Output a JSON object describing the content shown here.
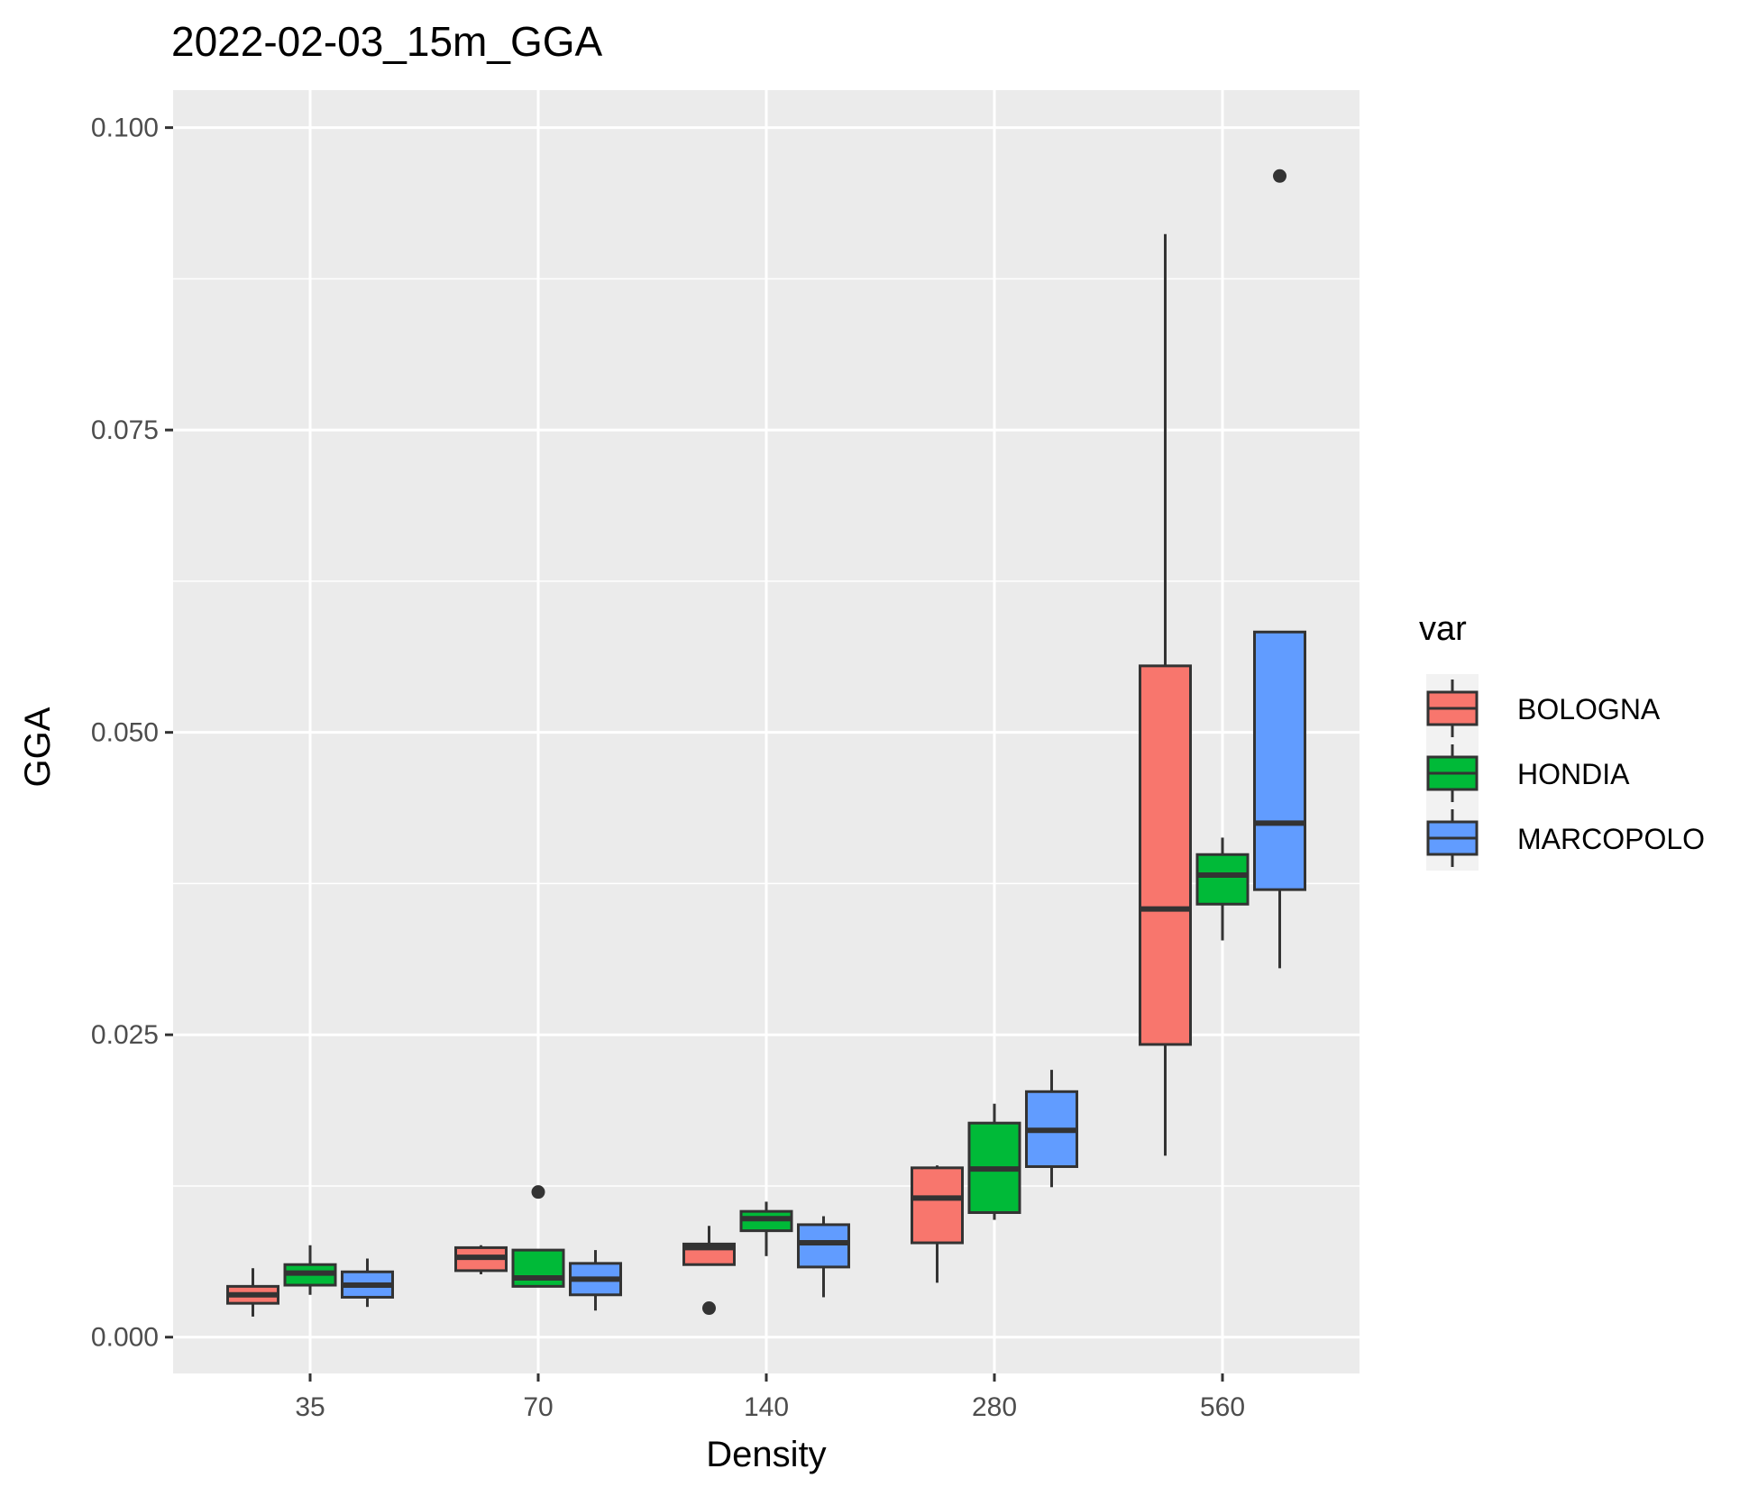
{
  "chart_data": {
    "type": "boxplot",
    "title": "2022-02-03_15m_GGA",
    "xlabel": "Density",
    "ylabel": "GGA",
    "categories": [
      "35",
      "70",
      "140",
      "280",
      "560"
    ],
    "ylim": [
      -0.003,
      0.1031
    ],
    "yticks": [
      0.0,
      0.025,
      0.05,
      0.075,
      0.1
    ],
    "ytick_labels": [
      "0.000",
      "0.025",
      "0.050",
      "0.075",
      "0.100"
    ],
    "grid": true,
    "legend": {
      "title": "var",
      "position": "right"
    },
    "series": [
      {
        "name": "BOLOGNA",
        "color": "#F8766D",
        "boxes": [
          {
            "whisker_low": 0.0017,
            "q1": 0.0028,
            "median": 0.0035,
            "q3": 0.0042,
            "whisker_high": 0.0057,
            "outliers": []
          },
          {
            "whisker_low": 0.0052,
            "q1": 0.0055,
            "median": 0.0066,
            "q3": 0.0074,
            "whisker_high": 0.0076,
            "outliers": []
          },
          {
            "whisker_low": 0.006,
            "q1": 0.006,
            "median": 0.0074,
            "q3": 0.0077,
            "whisker_high": 0.0092,
            "outliers": [
              0.0024
            ]
          },
          {
            "whisker_low": 0.0045,
            "q1": 0.0078,
            "median": 0.0115,
            "q3": 0.014,
            "whisker_high": 0.0142,
            "outliers": []
          },
          {
            "whisker_low": 0.015,
            "q1": 0.0242,
            "median": 0.0354,
            "q3": 0.0555,
            "whisker_high": 0.0912,
            "outliers": []
          }
        ]
      },
      {
        "name": "HONDIA",
        "color": "#00BA38",
        "boxes": [
          {
            "whisker_low": 0.0035,
            "q1": 0.0043,
            "median": 0.0053,
            "q3": 0.006,
            "whisker_high": 0.0076,
            "outliers": []
          },
          {
            "whisker_low": 0.0042,
            "q1": 0.0042,
            "median": 0.0049,
            "q3": 0.0072,
            "whisker_high": 0.0072,
            "outliers": [
              0.012
            ]
          },
          {
            "whisker_low": 0.0067,
            "q1": 0.0088,
            "median": 0.0098,
            "q3": 0.0104,
            "whisker_high": 0.0112,
            "outliers": []
          },
          {
            "whisker_low": 0.0097,
            "q1": 0.0103,
            "median": 0.0139,
            "q3": 0.0177,
            "whisker_high": 0.0193,
            "outliers": []
          },
          {
            "whisker_low": 0.0328,
            "q1": 0.0358,
            "median": 0.0382,
            "q3": 0.0399,
            "whisker_high": 0.0413,
            "outliers": []
          }
        ]
      },
      {
        "name": "MARCOPOLO",
        "color": "#619CFF",
        "boxes": [
          {
            "whisker_low": 0.0025,
            "q1": 0.0033,
            "median": 0.0043,
            "q3": 0.0054,
            "whisker_high": 0.0065,
            "outliers": []
          },
          {
            "whisker_low": 0.0022,
            "q1": 0.0035,
            "median": 0.0048,
            "q3": 0.0061,
            "whisker_high": 0.0072,
            "outliers": []
          },
          {
            "whisker_low": 0.0033,
            "q1": 0.0058,
            "median": 0.0078,
            "q3": 0.0093,
            "whisker_high": 0.01,
            "outliers": []
          },
          {
            "whisker_low": 0.0124,
            "q1": 0.0141,
            "median": 0.0171,
            "q3": 0.0203,
            "whisker_high": 0.0221,
            "outliers": []
          },
          {
            "whisker_low": 0.0305,
            "q1": 0.037,
            "median": 0.0425,
            "q3": 0.0583,
            "whisker_high": 0.0583,
            "outliers": [
              0.096
            ]
          }
        ]
      }
    ]
  }
}
